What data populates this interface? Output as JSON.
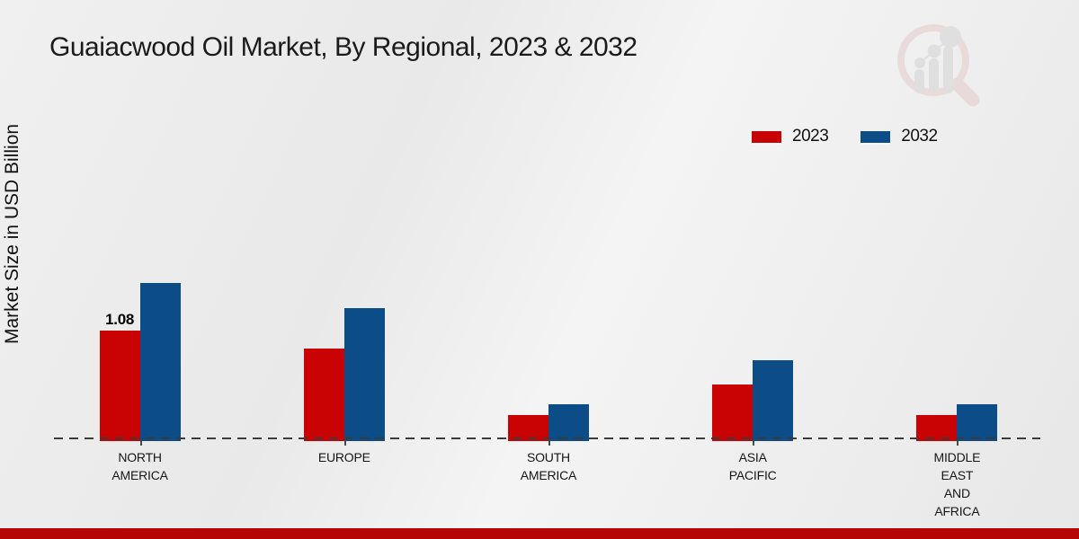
{
  "header": {
    "title": "Guaiacwood Oil Market, By Regional, 2023 & 2032"
  },
  "y_axis": {
    "label": "Market Size in USD Billion"
  },
  "legend": {
    "items": [
      {
        "label": "2023",
        "color": "#c90303"
      },
      {
        "label": "2032",
        "color": "#0c4d87"
      }
    ]
  },
  "watermark": {
    "name": "market-research-future-logo"
  },
  "footer": {
    "accent_color": "#b50505"
  },
  "chart_data": {
    "type": "bar",
    "title": "Guaiacwood Oil Market, By Regional, 2023 & 2032",
    "xlabel": "",
    "ylabel": "Market Size in USD Billion",
    "categories": [
      "NORTH\nAMERICA",
      "EUROPE",
      "SOUTH\nAMERICA",
      "ASIA\nPACIFIC",
      "MIDDLE\nEAST\nAND\nAFRICA"
    ],
    "series": [
      {
        "name": "2023",
        "color": "#c90303",
        "values": [
          1.08,
          0.9,
          0.25,
          0.55,
          0.25
        ],
        "labels": [
          "1.08",
          "",
          "",
          "",
          ""
        ]
      },
      {
        "name": "2032",
        "color": "#0c4d87",
        "values": [
          1.54,
          1.3,
          0.36,
          0.79,
          0.36
        ],
        "labels": [
          "",
          "",
          "",
          "",
          ""
        ]
      }
    ],
    "data_labels_shown": [
      {
        "series": "2023",
        "category": "NORTH AMERICA",
        "value": "1.08"
      }
    ],
    "ylim": [
      0,
      1.6
    ],
    "y_axis_ticks": "none",
    "grid": false,
    "baseline_style": "dashed",
    "legend_position": "top-right"
  }
}
